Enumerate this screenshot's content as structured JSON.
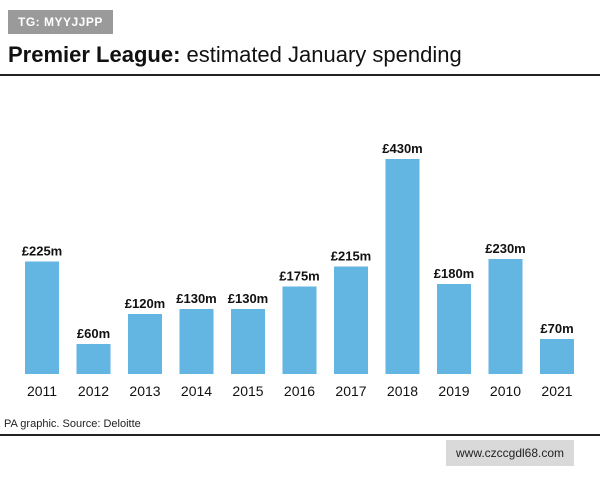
{
  "watermark_top": "TG: MYYJJPP",
  "title_bold": "Premier League:",
  "title_rest": " estimated January spending",
  "source": "PA graphic. Source: Deloitte",
  "watermark_bottom": "www.czccgdl68.com",
  "colors": {
    "bar": "#63b6e1",
    "text": "#111111"
  },
  "chart_data": {
    "type": "bar",
    "title": "Premier League: estimated January spending",
    "xlabel": "",
    "ylabel": "",
    "ylim": [
      0,
      450
    ],
    "categories": [
      "2011",
      "2012",
      "2013",
      "2014",
      "2015",
      "2016",
      "2017",
      "2018",
      "2019",
      "2010",
      "2021"
    ],
    "values": [
      225,
      60,
      120,
      130,
      130,
      175,
      215,
      430,
      180,
      230,
      70
    ],
    "labels": [
      "£225m",
      "£60m",
      "£120m",
      "£130m",
      "£130m",
      "£175m",
      "£215m",
      "£430m",
      "£180m",
      "£230m",
      "£70m"
    ]
  }
}
